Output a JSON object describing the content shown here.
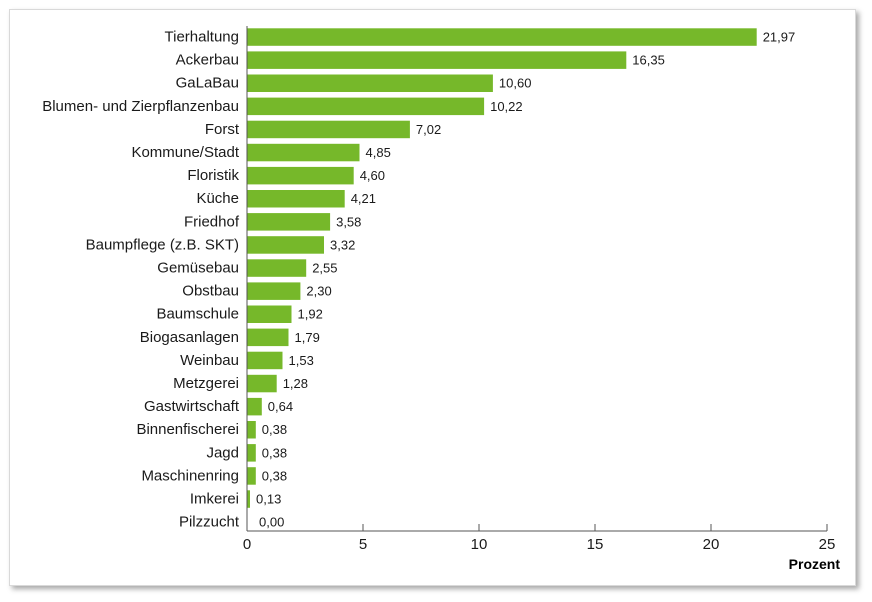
{
  "chart_data": {
    "type": "bar",
    "orientation": "horizontal",
    "categories": [
      "Tierhaltung",
      "Ackerbau",
      "GaLaBau",
      "Blumen- und Zierpflanzenbau",
      "Forst",
      "Kommune/Stadt",
      "Floristik",
      "Küche",
      "Friedhof",
      "Baumpflege (z.B. SKT)",
      "Gemüsebau",
      "Obstbau",
      "Baumschule",
      "Biogasanlagen",
      "Weinbau",
      "Metzgerei",
      "Gastwirtschaft",
      "Binnenfischerei",
      "Jagd",
      "Maschinenring",
      "Imkerei",
      "Pilzzucht"
    ],
    "values": [
      21.97,
      16.35,
      10.6,
      10.22,
      7.02,
      4.85,
      4.6,
      4.21,
      3.58,
      3.32,
      2.55,
      2.3,
      1.92,
      1.79,
      1.53,
      1.28,
      0.64,
      0.38,
      0.38,
      0.38,
      0.13,
      0.0
    ],
    "value_labels": [
      "21,97",
      "16,35",
      "10,60",
      "10,22",
      "7,02",
      "4,85",
      "4,60",
      "4,21",
      "3,58",
      "3,32",
      "2,55",
      "2,30",
      "1,92",
      "1,79",
      "1,53",
      "1,28",
      "0,64",
      "0,38",
      "0,38",
      "0,38",
      "0,13",
      "0,00"
    ],
    "xlabel": "Prozent",
    "xlim": [
      0,
      25
    ],
    "xticks": [
      0,
      5,
      10,
      15,
      20,
      25
    ],
    "grid": false,
    "bar_color": "#76b82a"
  }
}
